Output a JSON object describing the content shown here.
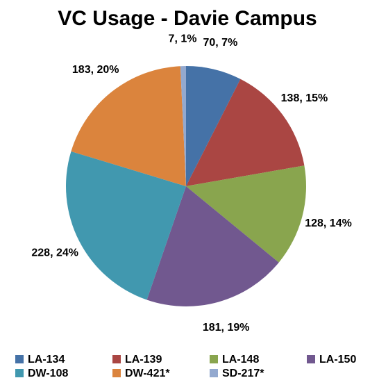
{
  "chart_data": {
    "type": "pie",
    "title": "VC Usage - Davie Campus",
    "categories": [
      "LA-134",
      "LA-139",
      "LA-148",
      "LA-150",
      "DW-108",
      "DW-421*",
      "SD-217*"
    ],
    "values": [
      70,
      138,
      128,
      181,
      228,
      183,
      7
    ],
    "value_labels": [
      "70, 7%",
      "138, 15%",
      "128, 14%",
      "181, 19%",
      "228, 24%",
      "183, 20%",
      "7, 1%"
    ],
    "colors": [
      "#4572a7",
      "#aa4643",
      "#89a54e",
      "#71588f",
      "#4198af",
      "#db843d",
      "#93a9cf"
    ],
    "legend": "bottom"
  }
}
